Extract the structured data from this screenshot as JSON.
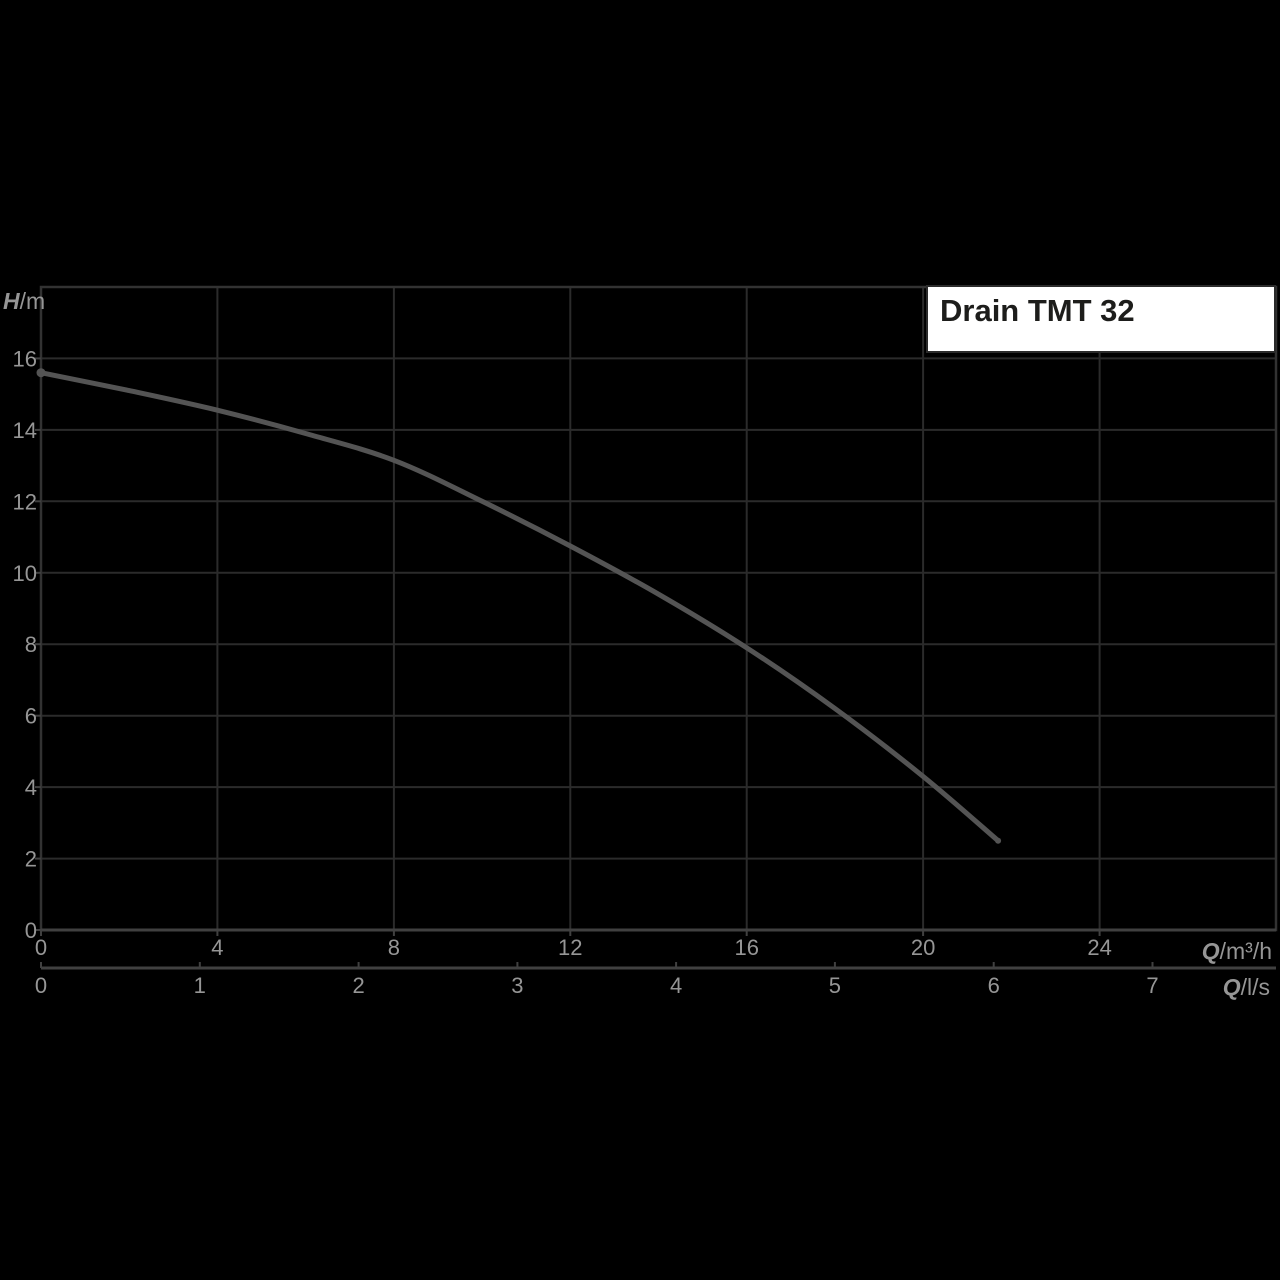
{
  "chart_data": {
    "type": "line",
    "title": "Drain TMT 32",
    "grid": true,
    "legend_position": "none",
    "y_axis": {
      "symbol": "H",
      "unit": "/m",
      "label": "H/m",
      "ticks": [
        0,
        2,
        4,
        6,
        8,
        10,
        12,
        14,
        16
      ],
      "range": [
        0,
        18
      ]
    },
    "x_axis_primary": {
      "symbol": "Q",
      "unit": "/m³/h",
      "label": "Q/m³/h",
      "ticks": [
        0,
        4,
        8,
        12,
        16,
        20,
        24
      ],
      "range": [
        0,
        28
      ]
    },
    "x_axis_secondary": {
      "symbol": "Q",
      "unit": "/l/s",
      "label": "Q/l/s",
      "ticks": [
        0,
        1,
        2,
        3,
        4,
        5,
        6,
        7
      ],
      "m3h_per_unit": 3.6
    },
    "series": [
      {
        "name": "Drain TMT 32",
        "points": [
          [
            0,
            15.6
          ],
          [
            2,
            15.1
          ],
          [
            4,
            14.55
          ],
          [
            6,
            13.9
          ],
          [
            8,
            13.15
          ],
          [
            10,
            12.0
          ],
          [
            12,
            10.75
          ],
          [
            14,
            9.4
          ],
          [
            16,
            7.9
          ],
          [
            18,
            6.2
          ],
          [
            20,
            4.3
          ],
          [
            21.7,
            2.5
          ]
        ]
      }
    ],
    "colors": {
      "background": "#000000",
      "grid": "#2b2b2b",
      "plot_border": "#323232",
      "axis_line": "#404040",
      "tick_label": "#969696",
      "curve": "#545454",
      "title_text": "#1d1d1b",
      "title_bg": "#ffffff",
      "title_border": "#2b2b2b"
    }
  }
}
